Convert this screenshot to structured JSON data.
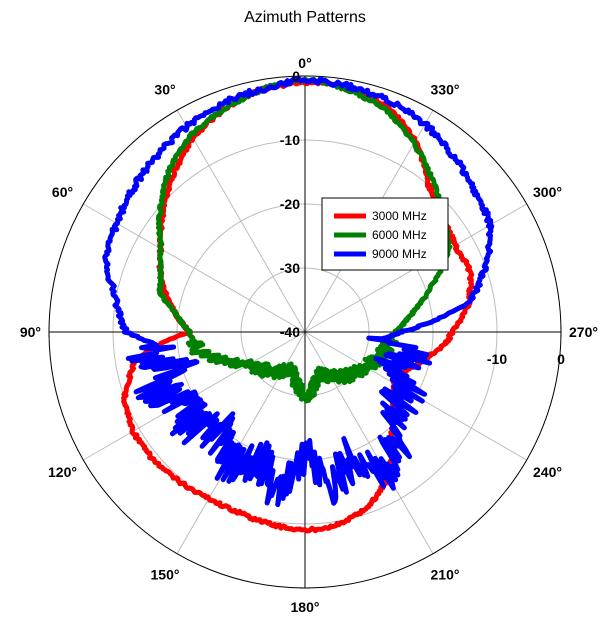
{
  "chart_data": {
    "type": "polar-line",
    "title": "Azimuth Patterns",
    "angle_direction": "counterclockwise",
    "zero_angle_position": "top",
    "angle_tick_labels": [
      "0°",
      "30°",
      "60°",
      "90°",
      "120°",
      "150°",
      "180°",
      "210°",
      "240°",
      "270°",
      "300°",
      "330°"
    ],
    "angle_ticks_deg": [
      0,
      30,
      60,
      90,
      120,
      150,
      180,
      210,
      240,
      270,
      300,
      330
    ],
    "radial_range": [
      -40,
      0
    ],
    "radial_ticks": [
      -40,
      -30,
      -20,
      -10,
      0
    ],
    "radial_tick_labels_vertical": [
      "0",
      "-10",
      "-20",
      "-30",
      "-40"
    ],
    "radial_tick_labels_horizontal": [
      "-10",
      "0"
    ],
    "grid": true,
    "legend": {
      "position": "center-right",
      "entries": [
        "3000 MHz",
        "6000 MHz",
        "9000 MHz"
      ]
    },
    "series": [
      {
        "name": "3000 MHz",
        "color": "#ff0000",
        "angles_deg": [
          0,
          10,
          20,
          30,
          40,
          50,
          60,
          70,
          80,
          90,
          95,
          100,
          110,
          120,
          130,
          140,
          150,
          160,
          170,
          180,
          190,
          200,
          210,
          220,
          230,
          240,
          250,
          260,
          265,
          270,
          280,
          290,
          300,
          310,
          320,
          330,
          340,
          350
        ],
        "values": [
          -1,
          -1.5,
          -3,
          -5,
          -8,
          -11,
          -14,
          -16,
          -19,
          -22,
          -17,
          -13,
          -10,
          -9,
          -9,
          -9.5,
          -10,
          -10,
          -9.5,
          -9,
          -9.5,
          -11,
          -14,
          -19,
          -22,
          -24,
          -23,
          -20,
          -18,
          -17,
          -14,
          -12.5,
          -13,
          -12,
          -10,
          -5.5,
          -2.5,
          -1.2
        ]
      },
      {
        "name": "6000 MHz",
        "color": "#008000",
        "angles_deg": [
          0,
          10,
          20,
          30,
          40,
          50,
          60,
          70,
          75,
          80,
          90,
          100,
          110,
          120,
          140,
          160,
          180,
          200,
          220,
          240,
          260,
          270,
          280,
          290,
          300,
          310,
          320,
          330,
          340,
          350
        ],
        "values": [
          -0.5,
          -1.5,
          -3,
          -4.5,
          -7,
          -10.5,
          -14,
          -16,
          -16.5,
          -19,
          -22,
          -23,
          -27,
          -30,
          -32,
          -34,
          -30,
          -33,
          -31,
          -29,
          -27,
          -26,
          -23,
          -19,
          -14,
          -12,
          -9,
          -6,
          -3,
          -1.5
        ]
      },
      {
        "name": "9000 MHz",
        "color": "#0000ff",
        "angles_deg": [
          0,
          10,
          20,
          30,
          40,
          50,
          60,
          70,
          80,
          90,
          95,
          100,
          105,
          110,
          120,
          130,
          140,
          150,
          160,
          170,
          180,
          190,
          200,
          210,
          220,
          230,
          240,
          250,
          260,
          265,
          270,
          275,
          280,
          290,
          300,
          310,
          320,
          330,
          340,
          350
        ],
        "values": [
          -0.5,
          -1.5,
          -2,
          -3,
          -4,
          -5,
          -6,
          -7,
          -10,
          -12,
          -17,
          -14,
          -20,
          -15,
          -18,
          -17,
          -20,
          -16,
          -19,
          -15,
          -21,
          -16,
          -19,
          -15,
          -18,
          -22,
          -21,
          -25,
          -22,
          -28,
          -25,
          -20,
          -14,
          -10,
          -6.5,
          -5.5,
          -4,
          -2.5,
          -1.5,
          -1
        ]
      }
    ]
  }
}
